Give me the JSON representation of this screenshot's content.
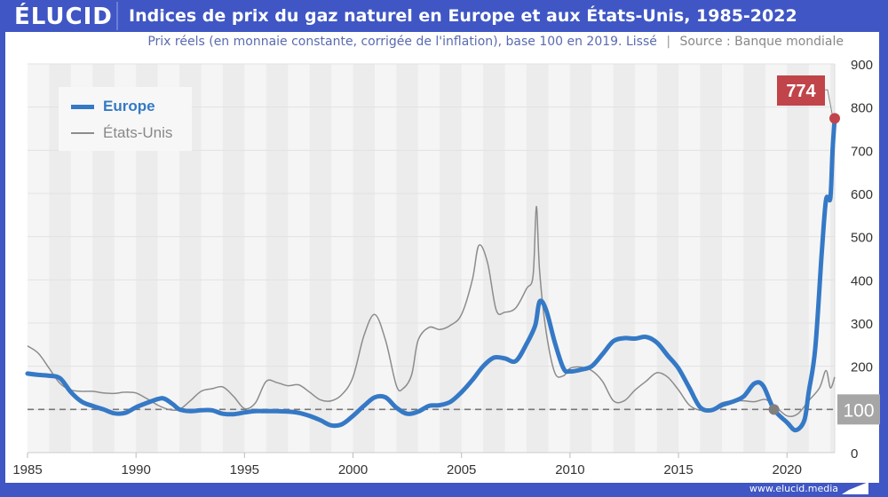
{
  "header": {
    "logo": "ÉLUCID",
    "title": "Indices de prix du gaz naturel en Europe et aux États-Unis, 1985-2022"
  },
  "subtitle": {
    "text": "Prix réels (en monnaie constante, corrigée de l'inflation), base 100 en 2019. Lissé",
    "separator": "|",
    "source": "Source : Banque mondiale"
  },
  "footer": {
    "url": "www.elucid.media"
  },
  "colors": {
    "brand": "#3f56c4",
    "europe": "#3579c6",
    "us": "#8c8c8c",
    "highlight": "#c0444a",
    "baseline_label_bg": "#a6a6a6"
  },
  "chart_data": {
    "type": "line",
    "title": "Indices de prix du gaz naturel en Europe et aux États-Unis, 1985-2022",
    "xlabel": "",
    "ylabel": "",
    "xlim": [
      1985,
      2022.2
    ],
    "ylim": [
      0,
      900
    ],
    "x_ticks": [
      1985,
      1990,
      1995,
      2000,
      2005,
      2010,
      2015,
      2020
    ],
    "y_ticks": [
      0,
      100,
      200,
      300,
      400,
      500,
      600,
      700,
      800,
      900
    ],
    "grid": true,
    "legend_position": "top-left",
    "baseline": {
      "value": 100,
      "label": "100",
      "style": "dashed"
    },
    "annotation": {
      "series": "Europe",
      "x": 2022.2,
      "y": 774,
      "label": "774"
    },
    "marker_2019": {
      "x": 2019.4,
      "y": 100
    },
    "series": [
      {
        "name": "Europe",
        "points": [
          [
            1985,
            183
          ],
          [
            1985.5,
            180
          ],
          [
            1986,
            178
          ],
          [
            1986.5,
            172
          ],
          [
            1987,
            140
          ],
          [
            1987.5,
            118
          ],
          [
            1988,
            108
          ],
          [
            1988.5,
            100
          ],
          [
            1989,
            91
          ],
          [
            1989.5,
            92
          ],
          [
            1990,
            105
          ],
          [
            1990.5,
            115
          ],
          [
            1991,
            124
          ],
          [
            1991.3,
            125
          ],
          [
            1991.7,
            112
          ],
          [
            1992,
            100
          ],
          [
            1992.5,
            96
          ],
          [
            1993,
            98
          ],
          [
            1993.5,
            98
          ],
          [
            1994,
            90
          ],
          [
            1994.5,
            89
          ],
          [
            1995,
            93
          ],
          [
            1995.5,
            96
          ],
          [
            1996,
            96
          ],
          [
            1996.5,
            96
          ],
          [
            1997,
            95
          ],
          [
            1997.5,
            92
          ],
          [
            1998,
            85
          ],
          [
            1998.5,
            75
          ],
          [
            1999,
            63
          ],
          [
            1999.5,
            66
          ],
          [
            2000,
            85
          ],
          [
            2000.5,
            108
          ],
          [
            2001,
            128
          ],
          [
            2001.5,
            128
          ],
          [
            2002,
            104
          ],
          [
            2002.5,
            90
          ],
          [
            2003,
            95
          ],
          [
            2003.5,
            108
          ],
          [
            2004,
            110
          ],
          [
            2004.5,
            118
          ],
          [
            2005,
            140
          ],
          [
            2005.5,
            168
          ],
          [
            2006,
            200
          ],
          [
            2006.5,
            220
          ],
          [
            2007,
            218
          ],
          [
            2007.5,
            212
          ],
          [
            2008,
            252
          ],
          [
            2008.4,
            295
          ],
          [
            2008.6,
            350
          ],
          [
            2008.9,
            330
          ],
          [
            2009.3,
            255
          ],
          [
            2009.7,
            195
          ],
          [
            2010,
            188
          ],
          [
            2010.5,
            192
          ],
          [
            2011,
            200
          ],
          [
            2011.5,
            228
          ],
          [
            2012,
            258
          ],
          [
            2012.5,
            265
          ],
          [
            2013,
            264
          ],
          [
            2013.5,
            268
          ],
          [
            2014,
            255
          ],
          [
            2014.5,
            225
          ],
          [
            2015,
            195
          ],
          [
            2015.5,
            150
          ],
          [
            2016,
            105
          ],
          [
            2016.5,
            98
          ],
          [
            2017,
            110
          ],
          [
            2017.5,
            118
          ],
          [
            2018,
            130
          ],
          [
            2018.5,
            160
          ],
          [
            2018.9,
            155
          ],
          [
            2019.4,
            100
          ],
          [
            2020,
            70
          ],
          [
            2020.4,
            52
          ],
          [
            2020.8,
            75
          ],
          [
            2021,
            140
          ],
          [
            2021.3,
            240
          ],
          [
            2021.6,
            460
          ],
          [
            2021.8,
            585
          ],
          [
            2022,
            590
          ],
          [
            2022.1,
            700
          ],
          [
            2022.2,
            774
          ]
        ]
      },
      {
        "name": "États-Unis",
        "points": [
          [
            1985,
            247
          ],
          [
            1985.5,
            230
          ],
          [
            1986,
            195
          ],
          [
            1986.5,
            160
          ],
          [
            1987,
            145
          ],
          [
            1987.5,
            142
          ],
          [
            1988,
            142
          ],
          [
            1988.5,
            138
          ],
          [
            1989,
            137
          ],
          [
            1989.5,
            140
          ],
          [
            1990,
            138
          ],
          [
            1990.5,
            125
          ],
          [
            1991,
            110
          ],
          [
            1991.5,
            100
          ],
          [
            1992,
            100
          ],
          [
            1992.5,
            120
          ],
          [
            1993,
            142
          ],
          [
            1993.5,
            148
          ],
          [
            1994,
            152
          ],
          [
            1994.5,
            130
          ],
          [
            1995,
            102
          ],
          [
            1995.5,
            115
          ],
          [
            1996,
            165
          ],
          [
            1996.5,
            162
          ],
          [
            1997,
            155
          ],
          [
            1997.5,
            157
          ],
          [
            1998,
            140
          ],
          [
            1998.5,
            122
          ],
          [
            1999,
            120
          ],
          [
            1999.5,
            135
          ],
          [
            2000,
            175
          ],
          [
            2000.5,
            270
          ],
          [
            2001,
            320
          ],
          [
            2001.5,
            260
          ],
          [
            2002,
            155
          ],
          [
            2002.3,
            148
          ],
          [
            2002.7,
            180
          ],
          [
            2003,
            260
          ],
          [
            2003.5,
            290
          ],
          [
            2004,
            285
          ],
          [
            2004.5,
            295
          ],
          [
            2005,
            320
          ],
          [
            2005.5,
            400
          ],
          [
            2005.8,
            480
          ],
          [
            2006.2,
            440
          ],
          [
            2006.6,
            330
          ],
          [
            2007,
            325
          ],
          [
            2007.5,
            335
          ],
          [
            2008,
            380
          ],
          [
            2008.3,
            410
          ],
          [
            2008.45,
            570
          ],
          [
            2008.6,
            420
          ],
          [
            2008.9,
            280
          ],
          [
            2009.3,
            185
          ],
          [
            2009.7,
            178
          ],
          [
            2010,
            195
          ],
          [
            2010.5,
            198
          ],
          [
            2011,
            190
          ],
          [
            2011.5,
            165
          ],
          [
            2012,
            120
          ],
          [
            2012.5,
            120
          ],
          [
            2013,
            145
          ],
          [
            2013.5,
            165
          ],
          [
            2014,
            185
          ],
          [
            2014.5,
            175
          ],
          [
            2015,
            145
          ],
          [
            2015.5,
            110
          ],
          [
            2016,
            98
          ],
          [
            2016.5,
            100
          ],
          [
            2017,
            115
          ],
          [
            2017.5,
            120
          ],
          [
            2018,
            120
          ],
          [
            2018.5,
            118
          ],
          [
            2019,
            123
          ],
          [
            2019.4,
            110
          ],
          [
            2020,
            85
          ],
          [
            2020.5,
            90
          ],
          [
            2021,
            120
          ],
          [
            2021.5,
            150
          ],
          [
            2021.8,
            190
          ],
          [
            2022,
            150
          ],
          [
            2022.2,
            175
          ]
        ]
      }
    ]
  }
}
